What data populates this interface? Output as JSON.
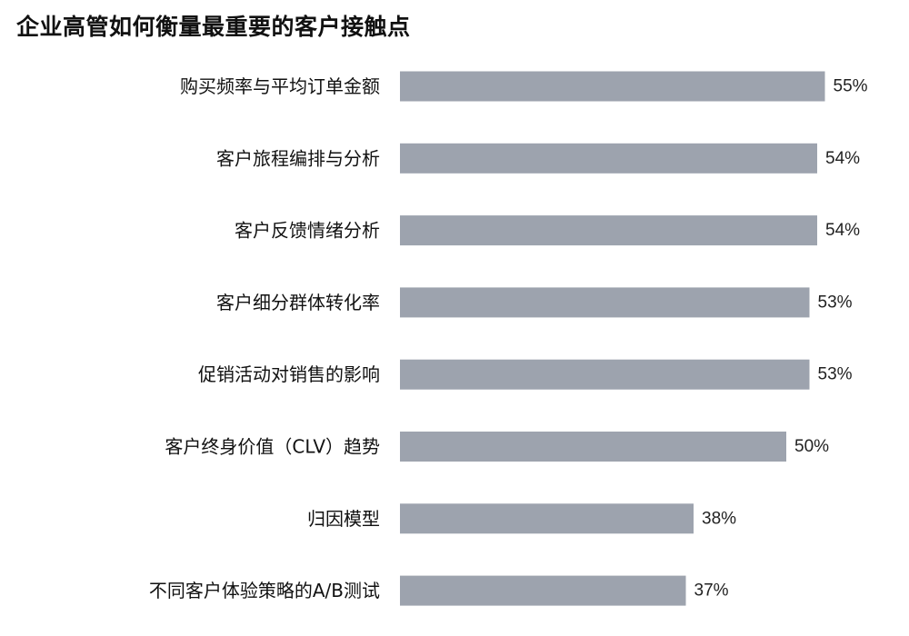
{
  "chart_data": {
    "type": "bar",
    "orientation": "horizontal",
    "title": "企业高管如何衡量最重要的客户接触点",
    "categories": [
      "购买频率与平均订单金额",
      "客户旅程编排与分析",
      "客户反馈情绪分析",
      "客户细分群体转化率",
      "促销活动对销售的影响",
      "客户终身价值（CLV）趋势",
      "归因模型",
      "不同客户体验策略的A/B测试"
    ],
    "values": [
      55,
      54,
      54,
      53,
      53,
      50,
      38,
      37
    ],
    "value_labels": [
      "55%",
      "54%",
      "54%",
      "53%",
      "53%",
      "50%",
      "38%",
      "37%"
    ],
    "bar_color": "#9da3ae",
    "grid": false,
    "legend": "none"
  }
}
